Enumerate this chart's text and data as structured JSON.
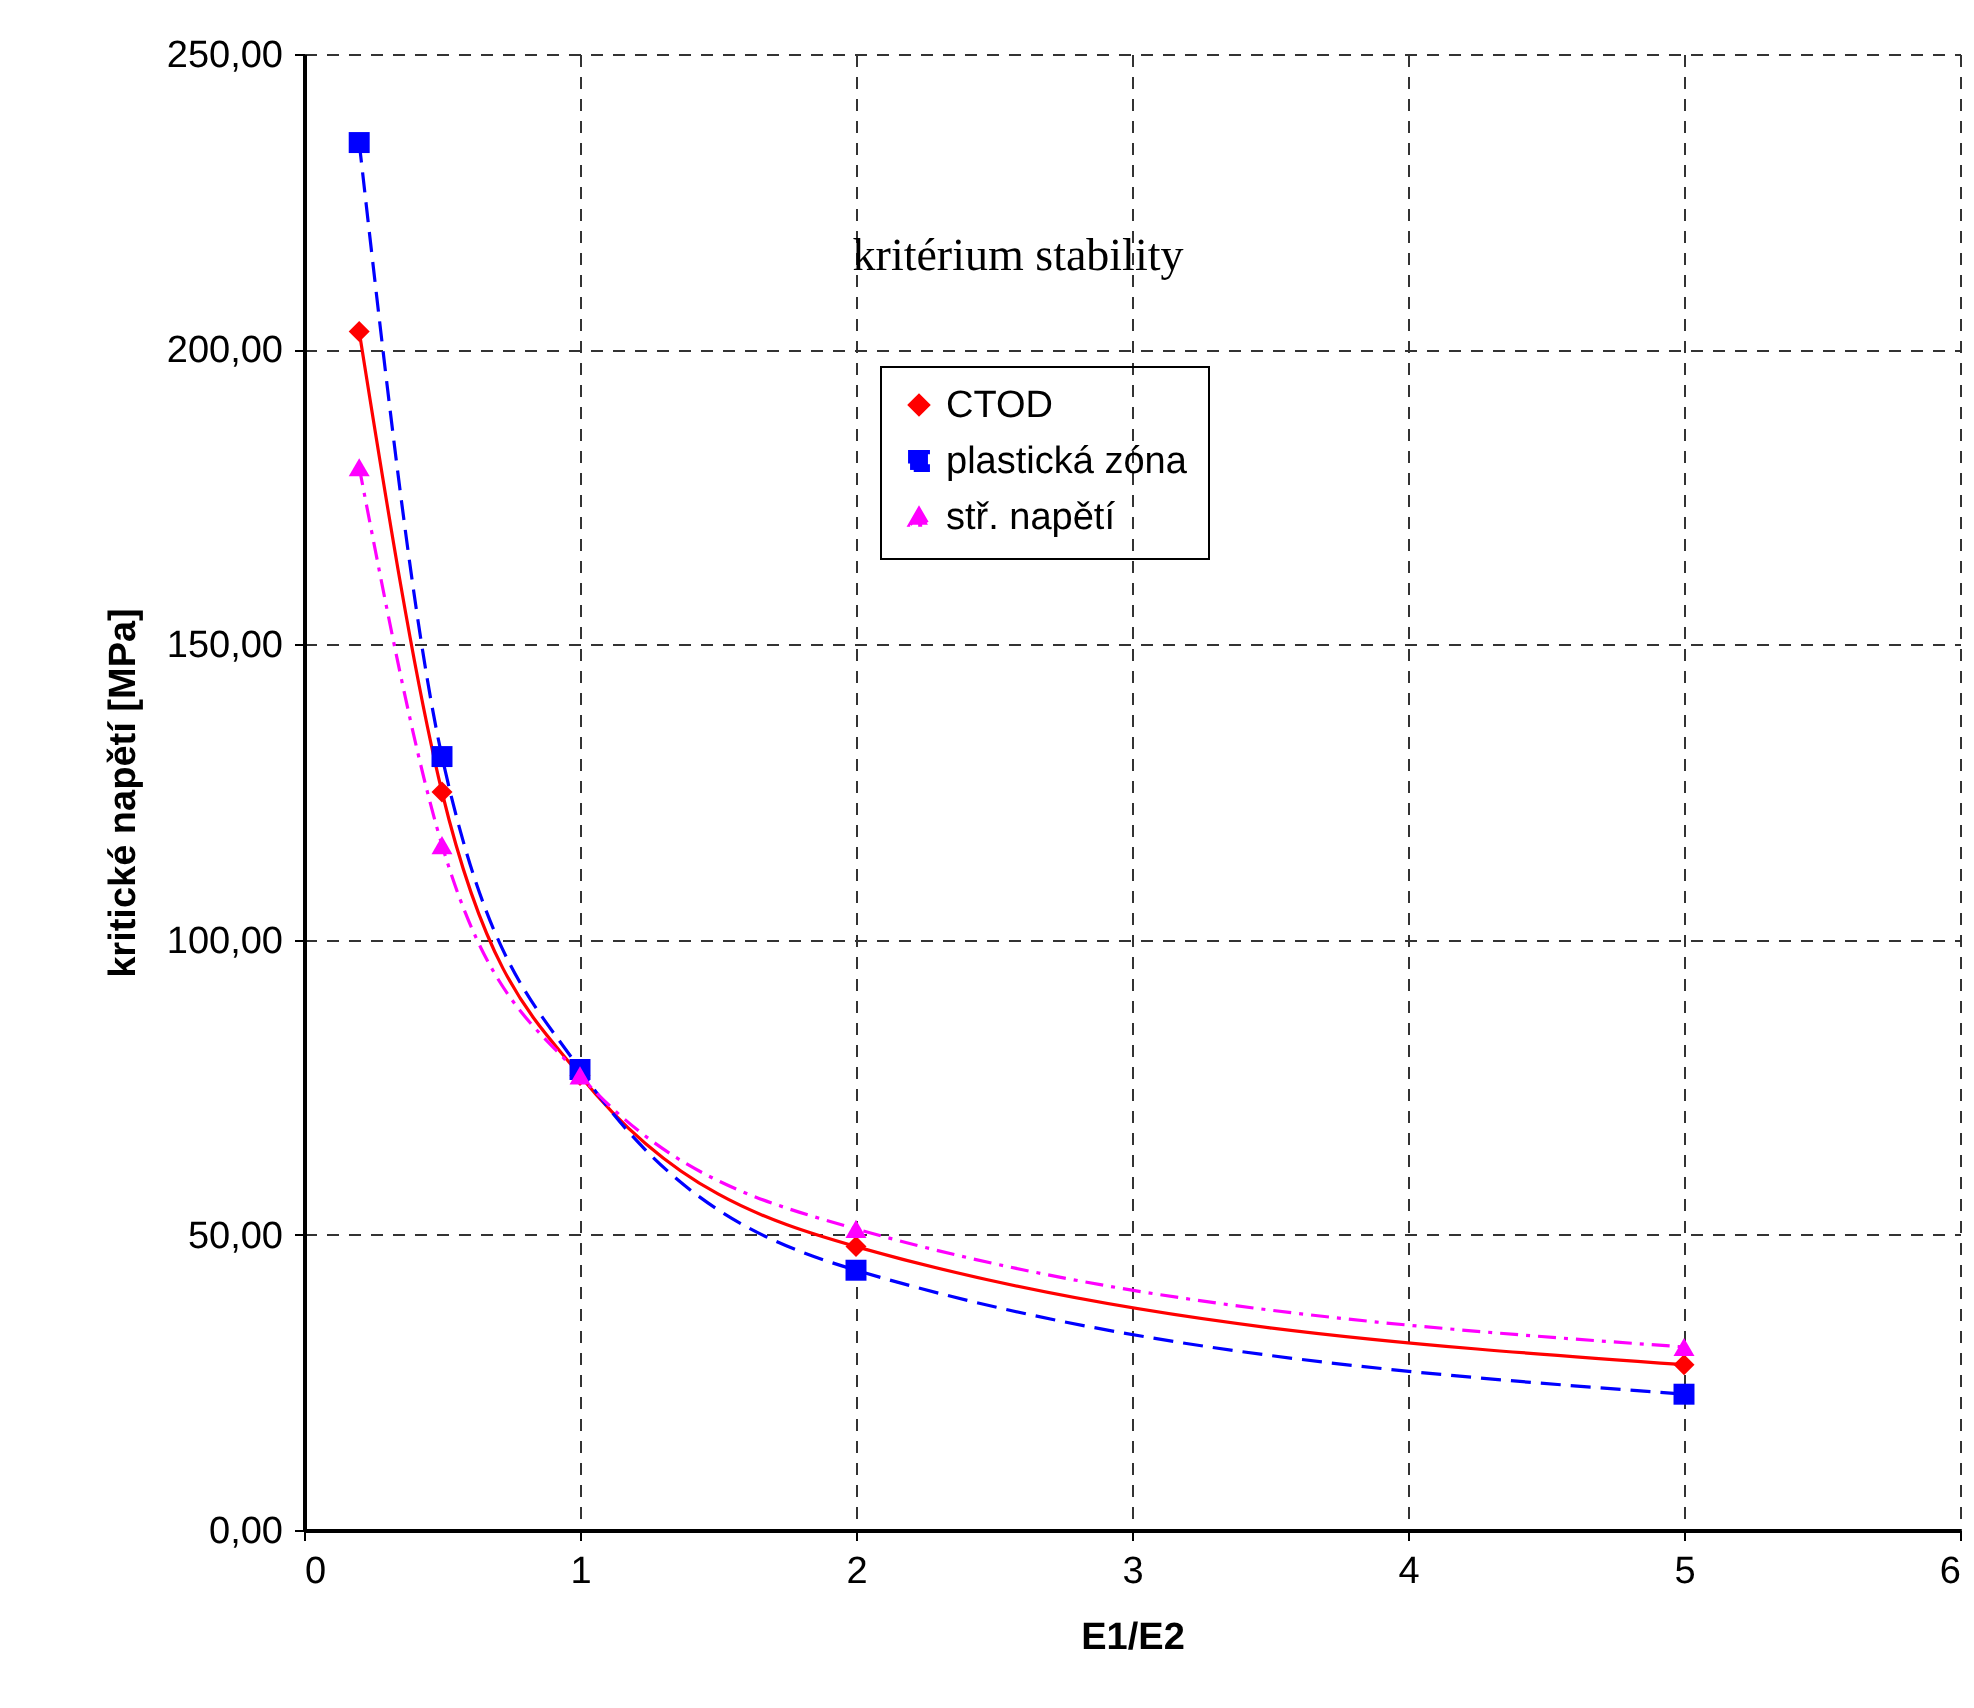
{
  "chart_data": {
    "type": "line",
    "xlabel": "E1/E2",
    "ylabel": "kritické napětí [MPa]",
    "annotations": [
      "kritérium stability"
    ],
    "x": [
      0.2,
      0.5,
      1,
      2,
      5
    ],
    "series": [
      {
        "name": "CTOD",
        "color": "#ff0000",
        "marker": "diamond",
        "line_style": "solid",
        "values": [
          203,
          125,
          77,
          48,
          28
        ]
      },
      {
        "name": "plastická zóna",
        "color": "#0000ff",
        "marker": "square",
        "line_style": "dashed",
        "values": [
          235,
          131,
          78,
          44,
          23
        ]
      },
      {
        "name": "stř. napětí",
        "color": "#ff00ff",
        "marker": "triangle",
        "line_style": "dotted",
        "values": [
          180,
          116,
          77,
          51,
          31
        ]
      }
    ],
    "xlim": [
      0,
      6
    ],
    "xticks": [
      0,
      1,
      2,
      3,
      4,
      5,
      6
    ],
    "ylim": [
      0,
      250
    ],
    "yticks": [
      {
        "value": 0,
        "label": "0,00"
      },
      {
        "value": 50,
        "label": "50,00"
      },
      {
        "value": 100,
        "label": "100,00"
      },
      {
        "value": 150,
        "label": "150,00"
      },
      {
        "value": 200,
        "label": "200,00"
      },
      {
        "value": 250,
        "label": "250,00"
      }
    ],
    "grid": true,
    "legend": "top"
  }
}
